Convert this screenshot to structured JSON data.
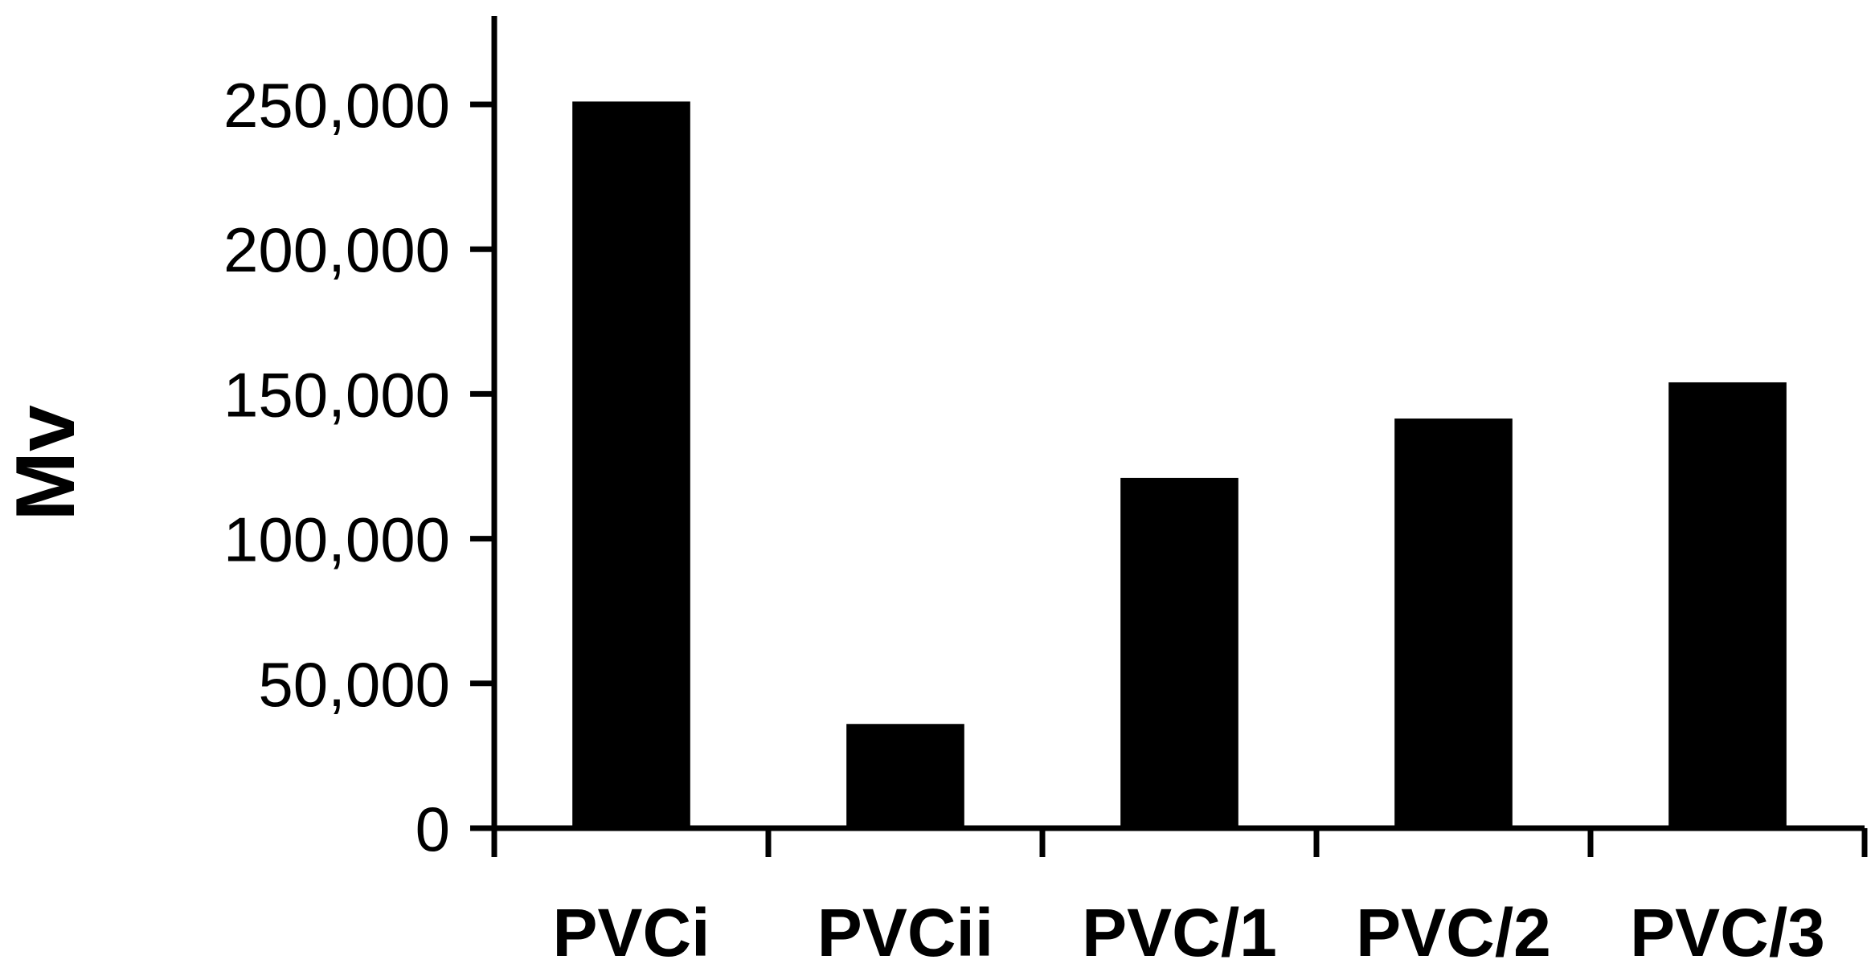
{
  "chart_data": {
    "type": "bar",
    "title": "",
    "xlabel": "",
    "ylabel": "Mv",
    "categories": [
      "PVCi",
      "PVCii",
      "PVC/1",
      "PVC/2",
      "PVC/3"
    ],
    "values": [
      251000,
      36000,
      121000,
      141500,
      154000
    ],
    "ylim": [
      0,
      280000
    ],
    "yticks": [
      0,
      50000,
      100000,
      150000,
      200000,
      250000
    ],
    "ytick_labels": [
      "0",
      "50,000",
      "100,000",
      "150,000",
      "200,000",
      "250,000"
    ],
    "bar_color": "#000000",
    "grid": false,
    "legend": "none"
  }
}
